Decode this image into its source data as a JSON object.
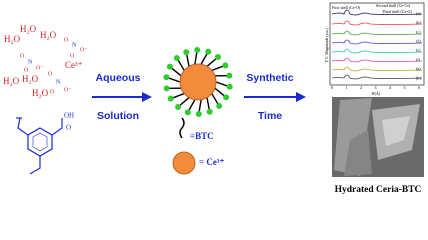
{
  "reactants": {
    "water": [
      "H₂O",
      "H₂O",
      "H₂O",
      "H₂O",
      "H₂O",
      "H₂O"
    ],
    "cerium": "Ce³⁺",
    "nitrates": [
      [
        "O",
        "N",
        "O⁻",
        "O"
      ],
      [
        "O",
        "N",
        "O⁻",
        "O"
      ],
      [
        "O",
        "N",
        "O⁻",
        "O"
      ]
    ],
    "btc": [
      "OH",
      "O"
    ]
  },
  "steps": [
    [
      "Aqueous",
      "Solution"
    ],
    [
      "Synthetic",
      "Time"
    ]
  ],
  "legend": {
    "btc": "=BTC",
    "ceria": "= Ce³⁺"
  },
  "inset": {
    "y_label": "F.T. Magnitude (a.u.)",
    "x_label": "R(Å)",
    "annotations": [
      "First shell (Ce-O)",
      "Second shell (Ce-Ce)",
      "Third shell (Ce-O)"
    ],
    "x_ticks": [
      "0",
      "1",
      "2",
      "3",
      "4",
      "5",
      "6"
    ],
    "curve_labels": [
      "(a)",
      "(b)",
      "(c)",
      "(d)",
      "(e)",
      "(f)",
      "(g)",
      "(h)"
    ]
  },
  "caption": "Hydrated Ceria-BTC"
}
